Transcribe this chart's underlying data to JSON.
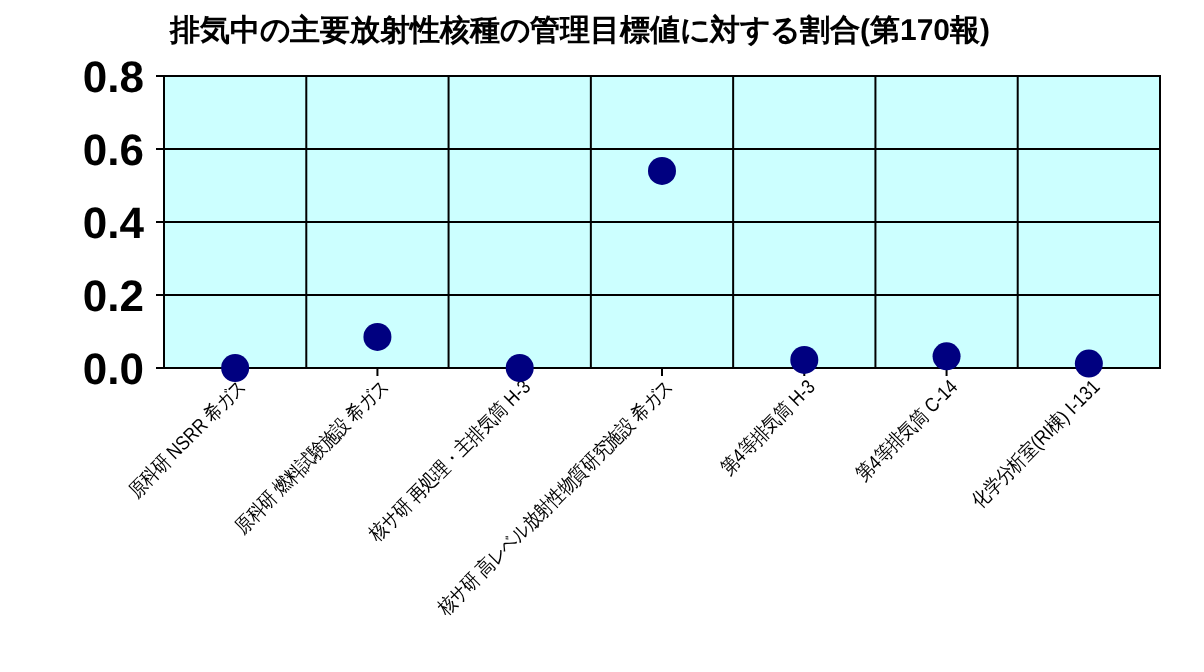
{
  "chart_data": {
    "type": "scatter",
    "title": "排気中の主要放射性核種の管理目標値に対する割合(第170報)",
    "categories": [
      "原科研 NSRR 希ガス",
      "原科研 燃料試験施設 希ガス",
      "核サ研 再処理・主排気筒 H-3",
      "核サ研 高レベル放射性物質研究施設 希ガス",
      "第4等排気筒 H-3",
      "第4等排気筒 C-14",
      "化学分析室(RI棟) I-131"
    ],
    "series": [
      {
        "color": "#000080",
        "values": [
          0.0,
          0.085,
          0.0,
          0.54,
          0.022,
          0.032,
          0.012
        ]
      }
    ],
    "ylim": [
      0,
      0.8
    ],
    "yticks": [
      {
        "value": 0,
        "label": "0.0"
      },
      {
        "value": 0.2,
        "label": "0.2"
      },
      {
        "value": 0.4,
        "label": "0.4"
      },
      {
        "value": 0.6,
        "label": "0.6"
      },
      {
        "value": 0.8,
        "label": "0.8"
      }
    ],
    "grid": true,
    "marker": "circle"
  }
}
